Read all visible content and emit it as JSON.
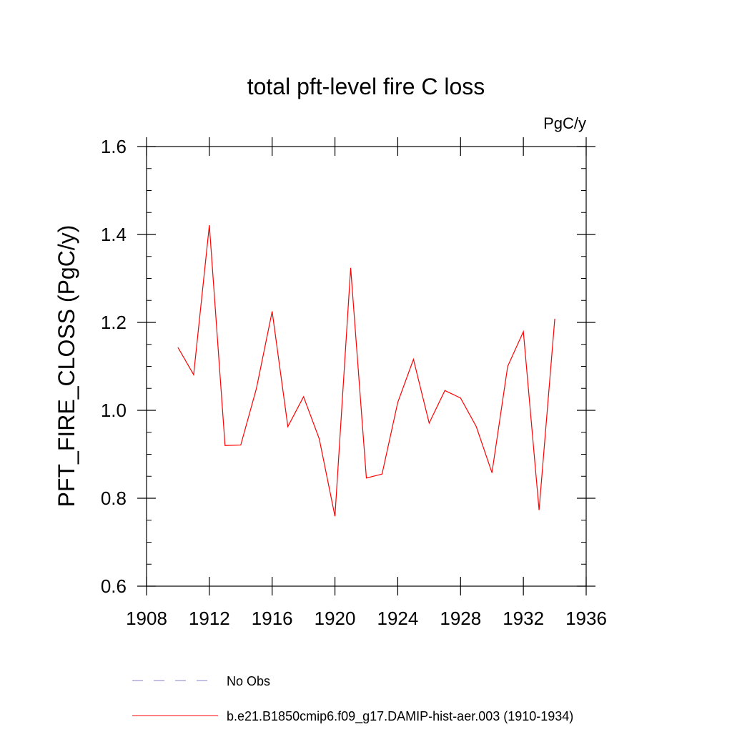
{
  "chart_data": {
    "type": "line",
    "title": "total pft-level fire C loss",
    "units_label": "PgC/y",
    "ylabel": "PFT_FIRE_CLOSS  (PgC/y)",
    "xlabel": "",
    "xlim": [
      1908,
      1936
    ],
    "ylim": [
      0.6,
      1.6
    ],
    "x_ticks": [
      1908,
      1912,
      1916,
      1920,
      1924,
      1928,
      1932,
      1936
    ],
    "x_tick_labels": [
      "1908",
      "1912",
      "1916",
      "1920",
      "1924",
      "1928",
      "1932",
      "1936"
    ],
    "y_ticks": [
      0.6,
      0.8,
      1.0,
      1.2,
      1.4,
      1.6
    ],
    "y_tick_labels": [
      "0.6",
      "0.8",
      "1.0",
      "1.2",
      "1.4",
      "1.6"
    ],
    "grid": false,
    "legend_position": "bottom",
    "series": [
      {
        "name": "b.e21.B1850cmip6.f09_g17.DAMIP-hist-aer.003 (1910-1934)",
        "color": "#ff0000",
        "style": "solid",
        "x": [
          1910,
          1911,
          1912,
          1913,
          1914,
          1915,
          1916,
          1917,
          1918,
          1919,
          1920,
          1921,
          1922,
          1923,
          1924,
          1925,
          1926,
          1927,
          1928,
          1929,
          1930,
          1931,
          1932,
          1933,
          1934
        ],
        "values": [
          1.143,
          1.081,
          1.421,
          0.92,
          0.921,
          1.05,
          1.225,
          0.963,
          1.031,
          0.935,
          0.759,
          1.324,
          0.846,
          0.855,
          1.018,
          1.116,
          0.971,
          1.045,
          1.028,
          0.963,
          0.858,
          1.1,
          1.179,
          0.773,
          1.208
        ]
      }
    ],
    "legend": [
      {
        "label": "No Obs",
        "color": "#8080d0",
        "style": "dashed"
      },
      {
        "label": "b.e21.B1850cmip6.f09_g17.DAMIP-hist-aer.003 (1910-1934)",
        "color": "#ff0000",
        "style": "solid"
      }
    ]
  }
}
